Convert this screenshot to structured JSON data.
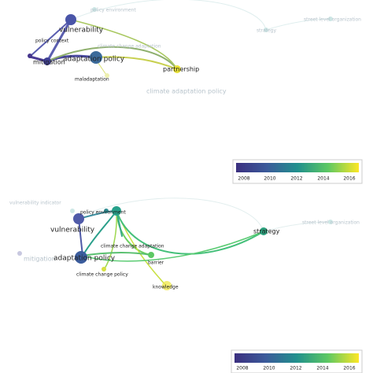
{
  "panels": [
    {
      "nodes": [
        {
          "label": "policy environment"
        },
        {
          "label": "vulnerability"
        },
        {
          "label": "policy context"
        },
        {
          "label": "mitigation"
        },
        {
          "label": "adaptation policy"
        },
        {
          "label": "climate change adaptation"
        },
        {
          "label": "maladaptation"
        },
        {
          "label": "partnership"
        },
        {
          "label": "climate adaptation policy"
        },
        {
          "label": "strategy"
        },
        {
          "label": "street level organization"
        }
      ],
      "colorbar": {
        "ticks": [
          "2008",
          "2010",
          "2012",
          "2014",
          "2016"
        ]
      }
    },
    {
      "nodes": [
        {
          "label": "vulnerability indicator"
        },
        {
          "label": "policy environment"
        },
        {
          "label": "vulnerability"
        },
        {
          "label": "strategy"
        },
        {
          "label": "street level organization"
        },
        {
          "label": "climate change adaptation"
        },
        {
          "label": "mitigation"
        },
        {
          "label": "adaptation policy"
        },
        {
          "label": "barrier"
        },
        {
          "label": "climate change policy"
        },
        {
          "label": "knowledge"
        }
      ],
      "colorbar": {
        "ticks": [
          "2008",
          "2010",
          "2012",
          "2014",
          "2016"
        ]
      }
    }
  ]
}
